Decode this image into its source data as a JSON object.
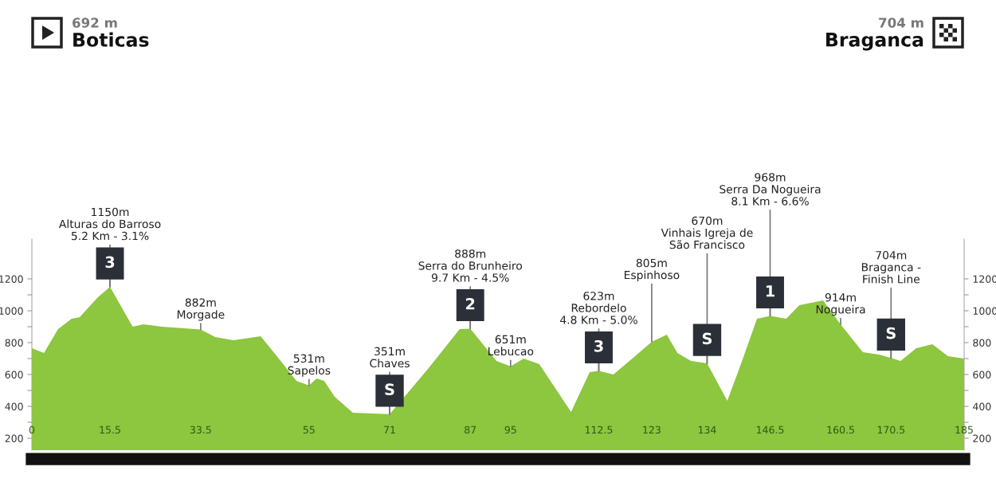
{
  "chart_data": {
    "type": "area",
    "color": "#8dc63f",
    "x": [
      0,
      2.4,
      5.2,
      7.9,
      9.5,
      13.1,
      15.5,
      20,
      22.1,
      25.8,
      33.5,
      36.4,
      40,
      42.2,
      45.4,
      49,
      52.5,
      55,
      56.5,
      58,
      60.1,
      63.7,
      71,
      78.6,
      84.9,
      87,
      92.2,
      95,
      97.6,
      100.7,
      107,
      110.7,
      112.5,
      115.4,
      119.7,
      123,
      126,
      128.1,
      130.8,
      134,
      138,
      140.7,
      143.9,
      146.5,
      149.7,
      152.3,
      157,
      160.5,
      164.9,
      168.1,
      170.5,
      172.4,
      175.5,
      178.7,
      181.8,
      185
    ],
    "values": [
      765,
      735,
      885,
      950,
      960,
      1085,
      1150,
      900,
      915,
      900,
      882,
      835,
      815,
      825,
      840,
      700,
      560,
      531,
      575,
      560,
      460,
      360,
      351,
      635,
      885,
      888,
      685,
      651,
      700,
      665,
      365,
      615,
      623,
      600,
      715,
      805,
      850,
      735,
      685,
      670,
      435,
      665,
      950,
      968,
      950,
      1035,
      1065,
      914,
      740,
      725,
      704,
      685,
      765,
      790,
      715,
      700
    ],
    "xlim": [
      0,
      185
    ],
    "xticks": [
      0,
      15.5,
      33.5,
      55,
      71,
      87,
      95,
      112.5,
      123,
      134,
      146.5,
      160.5,
      170.5,
      185
    ],
    "ylim": [
      125,
      1450
    ],
    "yticks": [
      200,
      {
        "value": 300,
        "label": null
      },
      400,
      {
        "value": 500,
        "label": null
      },
      600,
      {
        "value": 700,
        "label": null
      },
      800,
      {
        "value": 900,
        "label": null
      },
      1000,
      {
        "value": 1100,
        "label": null
      },
      1200
    ],
    "y2lim": [
      125,
      1450
    ],
    "y2ticks": [
      200,
      {
        "value": 300,
        "label": null
      },
      400,
      {
        "value": 500,
        "label": null
      },
      600,
      {
        "value": 700,
        "label": null
      },
      800,
      {
        "value": 900,
        "label": null
      },
      1000,
      {
        "value": 1100,
        "label": null
      },
      1200
    ],
    "annotations": [
      "692 m",
      "Boticas",
      "704 m",
      "Braganca",
      {
        "text": "3",
        "x": 15.5,
        "y": 1150
      },
      {
        "text": "1150m\nAlturas do Barroso\n5.2 Km - 3.1%",
        "x": 15.5,
        "y": 1150
      },
      {
        "text": "882m\nMorgade",
        "x": 33.5,
        "y": 882
      },
      {
        "text": "531m\nSapelos",
        "x": 55,
        "y": 531
      },
      {
        "text": "S",
        "x": 71,
        "y": 351
      },
      {
        "text": "351m\nChaves",
        "x": 71,
        "y": 351
      },
      {
        "text": "2",
        "x": 87,
        "y": 888
      },
      {
        "text": "888m\nSerra do Brunheiro\n9.7 Km - 4.5%",
        "x": 87,
        "y": 888
      },
      {
        "text": "651m\nLebucao",
        "x": 95,
        "y": 651
      },
      {
        "text": "3",
        "x": 112.5,
        "y": 623
      },
      {
        "text": "623m\nRebordelo\n4.8 Km - 5.0%",
        "x": 112.5,
        "y": 623
      },
      {
        "text": "805m\nEspinhoso",
        "x": 123,
        "y": 805
      },
      {
        "text": "S",
        "x": 134,
        "y": 670
      },
      {
        "text": "670m\nVinhais Igreja de\nSão Francisco",
        "x": 134,
        "y": 670
      },
      {
        "text": "1",
        "x": 146.5,
        "y": 968
      },
      {
        "text": "968m\nSerra Da Nogueira\n8.1 Km - 6.6%",
        "x": 146.5,
        "y": 968
      },
      {
        "text": "914m\nNogueira",
        "x": 160.5,
        "y": 914
      },
      {
        "text": "S",
        "x": 170.5,
        "y": 704
      },
      {
        "text": "704m\nBraganca -\nFinish Line",
        "x": 170.5,
        "y": 704
      }
    ]
  }
}
